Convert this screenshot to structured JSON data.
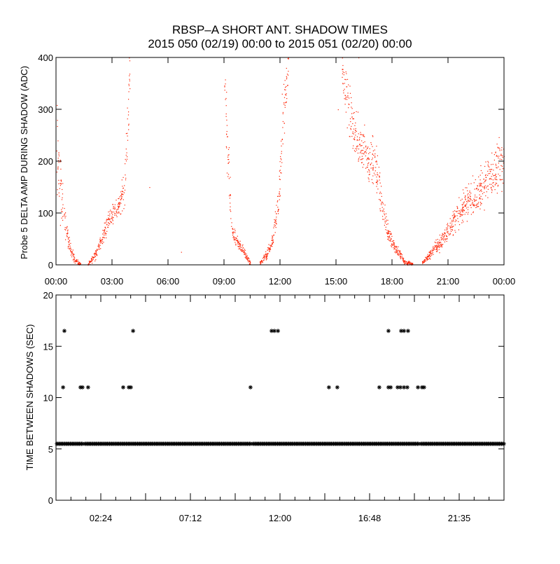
{
  "title": "RBSP–A SHORT ANT. SHADOW TIMES",
  "subtitle": "2015 050 (02/19) 00:00 to 2015 051 (02/20) 00:00",
  "colors": {
    "points": "#ff2000",
    "axes": "#000000",
    "background": "#ffffff"
  },
  "chart_data": [
    {
      "type": "scatter",
      "ylabel": "Probe 5 DELTA AMP DURING SHADOW (ADC)",
      "xlabel": "",
      "xlim_hours": [
        0,
        24
      ],
      "ylim": [
        0,
        400
      ],
      "xtick_labels": [
        "00:00",
        "03:00",
        "06:00",
        "09:00",
        "12:00",
        "15:00",
        "18:00",
        "21:00",
        "00:00"
      ],
      "ytick_labels": [
        "0",
        "100",
        "200",
        "300",
        "400"
      ],
      "ytick_values": [
        0,
        100,
        200,
        300,
        400
      ],
      "series_envelope_note": "point clouds: [hour, center ADC, spread ADC]",
      "bands": [
        [
          [
            0.0,
            220,
            90
          ],
          [
            0.2,
            160,
            60
          ],
          [
            0.4,
            90,
            25
          ],
          [
            0.7,
            40,
            12
          ],
          [
            1.0,
            8,
            5
          ],
          [
            1.3,
            2,
            2
          ]
        ],
        [
          [
            1.7,
            2,
            2
          ],
          [
            2.1,
            20,
            8
          ],
          [
            2.5,
            55,
            12
          ],
          [
            2.8,
            90,
            15
          ],
          [
            3.1,
            105,
            15
          ],
          [
            3.4,
            115,
            15
          ],
          [
            3.7,
            170,
            40
          ],
          [
            3.95,
            380,
            40
          ]
        ],
        [
          [
            9.0,
            380,
            40
          ],
          [
            9.2,
            200,
            60
          ],
          [
            9.4,
            65,
            12
          ],
          [
            9.8,
            40,
            8
          ],
          [
            10.2,
            15,
            6
          ],
          [
            10.4,
            3,
            3
          ]
        ],
        [
          [
            10.9,
            3,
            3
          ],
          [
            11.3,
            20,
            8
          ],
          [
            11.6,
            50,
            12
          ],
          [
            11.9,
            120,
            30
          ],
          [
            12.2,
            300,
            50
          ],
          [
            12.45,
            390,
            20
          ]
        ],
        [
          [
            15.3,
            380,
            40
          ],
          [
            15.7,
            300,
            50
          ],
          [
            16.0,
            250,
            40
          ],
          [
            16.3,
            225,
            35
          ],
          [
            16.7,
            210,
            35
          ],
          [
            17.1,
            190,
            40
          ],
          [
            17.4,
            130,
            30
          ],
          [
            17.8,
            60,
            15
          ],
          [
            18.2,
            30,
            10
          ],
          [
            18.7,
            5,
            4
          ],
          [
            19.1,
            2,
            2
          ]
        ],
        [
          [
            19.6,
            4,
            3
          ],
          [
            20.1,
            25,
            8
          ],
          [
            20.6,
            45,
            12
          ],
          [
            21.2,
            80,
            18
          ],
          [
            21.8,
            110,
            25
          ],
          [
            22.5,
            140,
            30
          ],
          [
            23.2,
            170,
            35
          ],
          [
            24.0,
            205,
            45
          ]
        ]
      ],
      "point_density_per_hour": 120
    },
    {
      "type": "scatter",
      "ylabel": "TIME BETWEEN SHADOWS (SEC)",
      "xlabel": "",
      "xlim_hours": [
        0,
        24
      ],
      "ylim": [
        0,
        20
      ],
      "xtick_labels": [
        "02:24",
        "07:12",
        "12:00",
        "16:48",
        "21:35"
      ],
      "xtick_hours": [
        2.4,
        4.8,
        7.2,
        9.6,
        12.0,
        14.4,
        16.8,
        19.2,
        21.6
      ],
      "ytick_labels": [
        "0",
        "5",
        "10",
        "15",
        "20"
      ],
      "ytick_values": [
        0,
        5,
        10,
        15,
        20
      ],
      "baseline": {
        "value": 5.5,
        "range_hours": [
          0.05,
          24.0
        ],
        "gaps_hours": [
          1.5,
          10.5,
          19.5
        ]
      },
      "points_11s": [
        0.38,
        1.31,
        1.42,
        1.72,
        3.6,
        3.9,
        4.01,
        10.42,
        14.62,
        15.07,
        17.32,
        17.81,
        17.93,
        18.3,
        18.45,
        18.64,
        18.82,
        19.39,
        19.61,
        19.72
      ],
      "points_16_5s": [
        0.45,
        4.13,
        11.55,
        11.7,
        11.89,
        17.81,
        18.49,
        18.64,
        18.86
      ]
    }
  ]
}
